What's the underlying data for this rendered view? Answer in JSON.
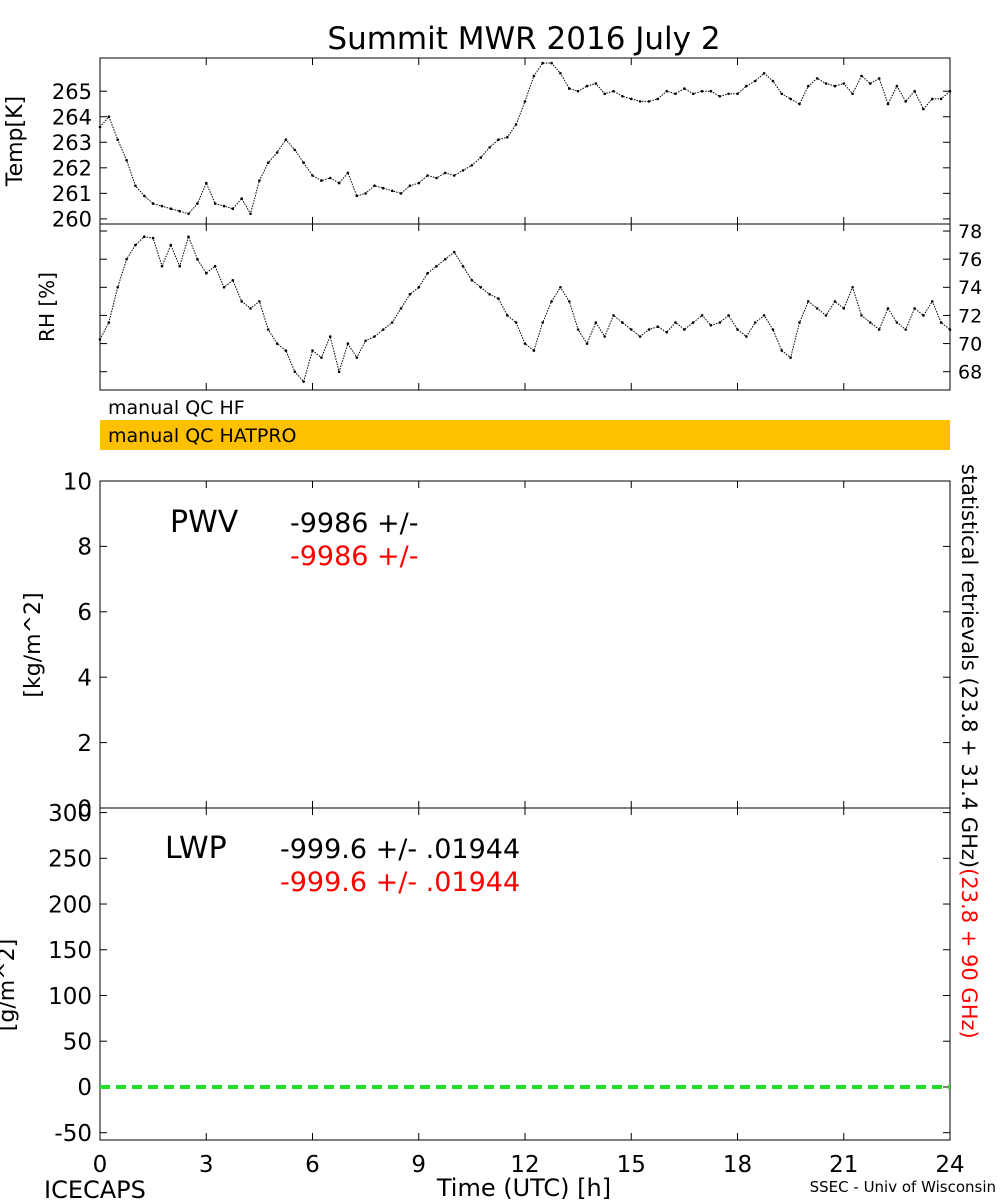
{
  "header": {
    "title": "Summit MWR 2016 July  2",
    "footer_left": "ICECAPS",
    "footer_right": "SSEC - Univ of Wisconsin",
    "x_label": "Time (UTC) [h]"
  },
  "x_axis": {
    "range": [
      0,
      24
    ],
    "ticks": [
      0,
      3,
      6,
      9,
      12,
      15,
      18,
      21,
      24
    ]
  },
  "qc_bars": [
    {
      "label": "manual QC HF",
      "color": "#ffffff"
    },
    {
      "label": "manual QC HATPRO",
      "color": "#ffc000"
    }
  ],
  "side_labels": {
    "black": "statistical retrievals (23.8 + 31.4 GHz)",
    "red": "(23.8 + 90 GHz)",
    "red_color": "#ff0000"
  },
  "chart_data": [
    {
      "id": "temp",
      "type": "scatter",
      "ylabel": "Temp[K]",
      "ylim": [
        259.8,
        266.3
      ],
      "yticks": [
        260,
        261,
        262,
        263,
        264,
        265
      ],
      "x": [
        0,
        0.25,
        0.5,
        0.75,
        1,
        1.25,
        1.5,
        1.75,
        2,
        2.25,
        2.5,
        2.75,
        3,
        3.25,
        3.5,
        3.75,
        4,
        4.25,
        4.5,
        4.75,
        5,
        5.25,
        5.5,
        5.75,
        6,
        6.25,
        6.5,
        6.75,
        7,
        7.25,
        7.5,
        7.75,
        8,
        8.25,
        8.5,
        8.75,
        9,
        9.25,
        9.5,
        9.75,
        10,
        10.25,
        10.5,
        10.75,
        11,
        11.25,
        11.5,
        11.75,
        12,
        12.25,
        12.5,
        12.75,
        13,
        13.25,
        13.5,
        13.75,
        14,
        14.25,
        14.5,
        14.75,
        15,
        15.25,
        15.5,
        15.75,
        16,
        16.25,
        16.5,
        16.75,
        17,
        17.25,
        17.5,
        17.75,
        18,
        18.25,
        18.5,
        18.75,
        19,
        19.25,
        19.5,
        19.75,
        20,
        20.25,
        20.5,
        20.75,
        21,
        21.25,
        21.5,
        21.75,
        22,
        22.25,
        22.5,
        22.75,
        23,
        23.25,
        23.5,
        23.75,
        24
      ],
      "y": [
        263.6,
        264.0,
        263.1,
        262.3,
        261.3,
        260.9,
        260.6,
        260.5,
        260.4,
        260.3,
        260.2,
        260.6,
        261.4,
        260.6,
        260.5,
        260.4,
        260.8,
        260.2,
        261.5,
        262.2,
        262.6,
        263.1,
        262.7,
        262.2,
        261.7,
        261.5,
        261.6,
        261.4,
        261.8,
        260.9,
        261.0,
        261.3,
        261.2,
        261.1,
        261.0,
        261.3,
        261.4,
        261.7,
        261.6,
        261.8,
        261.7,
        261.9,
        262.1,
        262.4,
        262.8,
        263.1,
        263.2,
        263.7,
        264.6,
        265.6,
        266.1,
        266.1,
        265.7,
        265.1,
        265.0,
        265.2,
        265.3,
        264.9,
        265.0,
        264.8,
        264.7,
        264.6,
        264.6,
        264.7,
        265.0,
        264.9,
        265.1,
        264.9,
        265.0,
        265.0,
        264.8,
        264.9,
        264.9,
        265.2,
        265.4,
        265.7,
        265.4,
        264.9,
        264.7,
        264.5,
        265.2,
        265.5,
        265.3,
        265.2,
        265.3,
        264.9,
        265.6,
        265.3,
        265.5,
        264.5,
        265.2,
        264.6,
        265.0,
        264.3,
        264.7,
        264.7,
        265.0
      ]
    },
    {
      "id": "rh",
      "type": "scatter",
      "ylabel": "RH [%]",
      "ylim": [
        66.7,
        78.5
      ],
      "yticks": [
        68,
        70,
        72,
        74,
        76,
        78
      ],
      "x": [
        0,
        0.25,
        0.5,
        0.75,
        1,
        1.25,
        1.5,
        1.75,
        2,
        2.25,
        2.5,
        2.75,
        3,
        3.25,
        3.5,
        3.75,
        4,
        4.25,
        4.5,
        4.75,
        5,
        5.25,
        5.5,
        5.75,
        6,
        6.25,
        6.5,
        6.75,
        7,
        7.25,
        7.5,
        7.75,
        8,
        8.25,
        8.5,
        8.75,
        9,
        9.25,
        9.5,
        9.75,
        10,
        10.25,
        10.5,
        10.75,
        11,
        11.25,
        11.5,
        11.75,
        12,
        12.25,
        12.5,
        12.75,
        13,
        13.25,
        13.5,
        13.75,
        14,
        14.25,
        14.5,
        14.75,
        15,
        15.25,
        15.5,
        15.75,
        16,
        16.25,
        16.5,
        16.75,
        17,
        17.25,
        17.5,
        17.75,
        18,
        18.25,
        18.5,
        18.75,
        19,
        19.25,
        19.5,
        19.75,
        20,
        20.25,
        20.5,
        20.75,
        21,
        21.25,
        21.5,
        21.75,
        22,
        22.25,
        22.5,
        22.75,
        23,
        23.25,
        23.5,
        23.75,
        24
      ],
      "y": [
        70.3,
        71.5,
        74.0,
        76.0,
        77.0,
        77.6,
        77.5,
        75.5,
        77.0,
        75.5,
        77.6,
        76.0,
        75.0,
        75.5,
        74.0,
        74.5,
        73.0,
        72.5,
        73.0,
        71.0,
        70.0,
        69.5,
        68.0,
        67.3,
        69.5,
        69.0,
        70.5,
        68.0,
        70.0,
        69.0,
        70.2,
        70.5,
        71.0,
        71.5,
        72.5,
        73.5,
        74.0,
        75.0,
        75.5,
        76.0,
        76.5,
        75.5,
        74.5,
        74.0,
        73.5,
        73.2,
        72.0,
        71.5,
        70.0,
        69.5,
        71.5,
        73.0,
        74.0,
        73.0,
        71.0,
        70.0,
        71.5,
        70.5,
        72.0,
        71.5,
        71.0,
        70.5,
        71.0,
        71.2,
        70.8,
        71.5,
        71.0,
        71.5,
        72.0,
        71.3,
        71.5,
        72.0,
        71.0,
        70.5,
        71.5,
        72.0,
        71.0,
        69.5,
        69.0,
        71.5,
        73.0,
        72.5,
        72.0,
        73.0,
        72.5,
        74.0,
        72.0,
        71.5,
        71.0,
        72.5,
        71.5,
        71.0,
        72.5,
        72.0,
        73.0,
        71.5,
        71.0
      ]
    },
    {
      "id": "pwv",
      "type": "line",
      "ylabel": "[kg/m^2]",
      "ylim": [
        0,
        10
      ],
      "yticks": [
        0,
        2,
        4,
        6,
        8,
        10
      ],
      "label": "PWV",
      "value_black": "-9986 +/-",
      "value_red": "-9986 +/-",
      "series": []
    },
    {
      "id": "lwp",
      "type": "line",
      "ylabel": "[g/m^2]",
      "ylim": [
        -58,
        305
      ],
      "yticks": [
        -50,
        0,
        50,
        100,
        150,
        200,
        250,
        300
      ],
      "label": "LWP",
      "value_black": "-999.6 +/- .01944",
      "value_red": "-999.6 +/- .01944",
      "series": [
        {
          "x": [
            0,
            24
          ],
          "y": [
            0,
            0
          ],
          "color": "#22dd22",
          "style": "dashed"
        }
      ]
    }
  ]
}
